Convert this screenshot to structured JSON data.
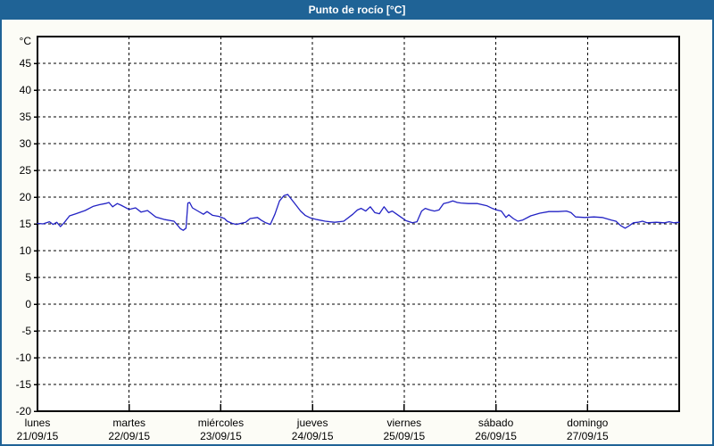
{
  "window": {
    "title": "Punto de rocío [°C]"
  },
  "colors": {
    "accent_blue": "#1f6396",
    "line_blue": "#2222c4",
    "plot_bg": "#ffffff",
    "page_bg": "#fcfcf6",
    "grid": "#000000",
    "title_text": "#ffffff"
  },
  "chart_data": {
    "type": "line",
    "title": "Punto de rocío [°C]",
    "ylabel": "°C",
    "xlabel": "",
    "ylim": [
      -20,
      50
    ],
    "yticks": [
      45,
      40,
      35,
      30,
      25,
      20,
      15,
      10,
      5,
      0,
      -5,
      -10,
      -15,
      -20
    ],
    "grid": "dashed",
    "legend_position": "none",
    "x_days": [
      {
        "name": "lunes",
        "date": "21/09/15"
      },
      {
        "name": "martes",
        "date": "22/09/15"
      },
      {
        "name": "miércoles",
        "date": "23/09/15"
      },
      {
        "name": "jueves",
        "date": "24/09/15"
      },
      {
        "name": "viernes",
        "date": "25/09/15"
      },
      {
        "name": "sábado",
        "date": "26/09/15"
      },
      {
        "name": "domingo",
        "date": "27/09/15"
      }
    ],
    "series": [
      {
        "name": "Punto de rocío",
        "color": "#2222c4",
        "x_unit": "days_from_start",
        "points": [
          [
            0,
            15.1
          ],
          [
            0.06,
            15.0
          ],
          [
            0.13,
            15.4
          ],
          [
            0.17,
            14.9
          ],
          [
            0.21,
            15.3
          ],
          [
            0.25,
            14.5
          ],
          [
            0.29,
            15.2
          ],
          [
            0.35,
            16.5
          ],
          [
            0.42,
            16.9
          ],
          [
            0.52,
            17.5
          ],
          [
            0.61,
            18.3
          ],
          [
            0.68,
            18.6
          ],
          [
            0.74,
            18.8
          ],
          [
            0.78,
            19.0
          ],
          [
            0.82,
            18.2
          ],
          [
            0.87,
            18.8
          ],
          [
            0.91,
            18.5
          ],
          [
            1.0,
            17.7
          ],
          [
            1.07,
            18.0
          ],
          [
            1.13,
            17.2
          ],
          [
            1.2,
            17.5
          ],
          [
            1.29,
            16.3
          ],
          [
            1.39,
            15.8
          ],
          [
            1.49,
            15.5
          ],
          [
            1.56,
            14.1
          ],
          [
            1.59,
            13.8
          ],
          [
            1.62,
            14.2
          ],
          [
            1.64,
            18.9
          ],
          [
            1.66,
            19.0
          ],
          [
            1.69,
            18.0
          ],
          [
            1.74,
            17.5
          ],
          [
            1.81,
            16.8
          ],
          [
            1.85,
            17.3
          ],
          [
            1.91,
            16.6
          ],
          [
            1.98,
            16.4
          ],
          [
            2.04,
            16.0
          ],
          [
            2.07,
            15.5
          ],
          [
            2.12,
            15.1
          ],
          [
            2.17,
            14.9
          ],
          [
            2.22,
            15.1
          ],
          [
            2.27,
            15.3
          ],
          [
            2.32,
            16.0
          ],
          [
            2.4,
            16.2
          ],
          [
            2.44,
            15.7
          ],
          [
            2.49,
            15.2
          ],
          [
            2.54,
            14.9
          ],
          [
            2.59,
            16.8
          ],
          [
            2.64,
            19.3
          ],
          [
            2.69,
            20.3
          ],
          [
            2.73,
            20.5
          ],
          [
            2.77,
            19.6
          ],
          [
            2.82,
            18.5
          ],
          [
            2.87,
            17.4
          ],
          [
            2.92,
            16.6
          ],
          [
            2.98,
            16.1
          ],
          [
            3.05,
            15.8
          ],
          [
            3.14,
            15.5
          ],
          [
            3.24,
            15.3
          ],
          [
            3.34,
            15.5
          ],
          [
            3.44,
            16.8
          ],
          [
            3.49,
            17.6
          ],
          [
            3.53,
            17.9
          ],
          [
            3.58,
            17.4
          ],
          [
            3.63,
            18.2
          ],
          [
            3.68,
            17.1
          ],
          [
            3.73,
            16.9
          ],
          [
            3.78,
            18.2
          ],
          [
            3.83,
            17.1
          ],
          [
            3.87,
            17.4
          ],
          [
            3.92,
            16.8
          ],
          [
            3.97,
            16.2
          ],
          [
            4.02,
            15.6
          ],
          [
            4.09,
            15.2
          ],
          [
            4.14,
            15.4
          ],
          [
            4.19,
            17.4
          ],
          [
            4.23,
            17.9
          ],
          [
            4.28,
            17.6
          ],
          [
            4.33,
            17.4
          ],
          [
            4.38,
            17.6
          ],
          [
            4.43,
            18.8
          ],
          [
            4.48,
            19.0
          ],
          [
            4.53,
            19.3
          ],
          [
            4.58,
            19.0
          ],
          [
            4.62,
            18.9
          ],
          [
            4.7,
            18.8
          ],
          [
            4.8,
            18.8
          ],
          [
            4.9,
            18.4
          ],
          [
            4.96,
            17.9
          ],
          [
            5.01,
            17.6
          ],
          [
            5.06,
            17.4
          ],
          [
            5.11,
            16.2
          ],
          [
            5.14,
            16.7
          ],
          [
            5.19,
            16.0
          ],
          [
            5.24,
            15.5
          ],
          [
            5.29,
            15.7
          ],
          [
            5.38,
            16.5
          ],
          [
            5.48,
            17.0
          ],
          [
            5.58,
            17.3
          ],
          [
            5.68,
            17.3
          ],
          [
            5.77,
            17.4
          ],
          [
            5.82,
            17.1
          ],
          [
            5.87,
            16.3
          ],
          [
            5.97,
            16.2
          ],
          [
            6.07,
            16.3
          ],
          [
            6.16,
            16.2
          ],
          [
            6.26,
            15.7
          ],
          [
            6.31,
            15.5
          ],
          [
            6.36,
            14.7
          ],
          [
            6.41,
            14.2
          ],
          [
            6.45,
            14.6
          ],
          [
            6.5,
            15.2
          ],
          [
            6.55,
            15.3
          ],
          [
            6.6,
            15.5
          ],
          [
            6.65,
            15.2
          ],
          [
            6.75,
            15.3
          ],
          [
            6.84,
            15.2
          ],
          [
            6.89,
            15.4
          ],
          [
            6.94,
            15.2
          ],
          [
            7.0,
            15.3
          ]
        ]
      }
    ]
  }
}
